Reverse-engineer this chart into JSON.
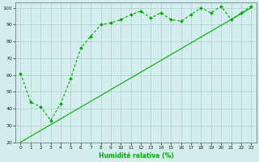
{
  "xlabel": "Humidité relative (%)",
  "background_color": "#d4eeee",
  "grid_color": "#b0cccc",
  "line_color": "#00aa00",
  "xlim": [
    -0.5,
    23.5
  ],
  "ylim": [
    20,
    103
  ],
  "yticks": [
    20,
    30,
    40,
    50,
    60,
    70,
    80,
    90,
    100
  ],
  "xticks": [
    0,
    1,
    2,
    3,
    4,
    5,
    6,
    7,
    8,
    9,
    10,
    11,
    12,
    13,
    14,
    15,
    16,
    17,
    18,
    19,
    20,
    21,
    22,
    23
  ],
  "series1_x": [
    0,
    1,
    2,
    3,
    4,
    5,
    6,
    7,
    8,
    9,
    10,
    11,
    12,
    13,
    14,
    15,
    16,
    17,
    18,
    19,
    20,
    21,
    22,
    23
  ],
  "series1_y": [
    61,
    44,
    41,
    33,
    43,
    58,
    76,
    83,
    90,
    91,
    93,
    96,
    98,
    94,
    97,
    93,
    92,
    96,
    100,
    97,
    101,
    93,
    97,
    101
  ],
  "series2_x": [
    0,
    23
  ],
  "series2_y": [
    20,
    100
  ]
}
